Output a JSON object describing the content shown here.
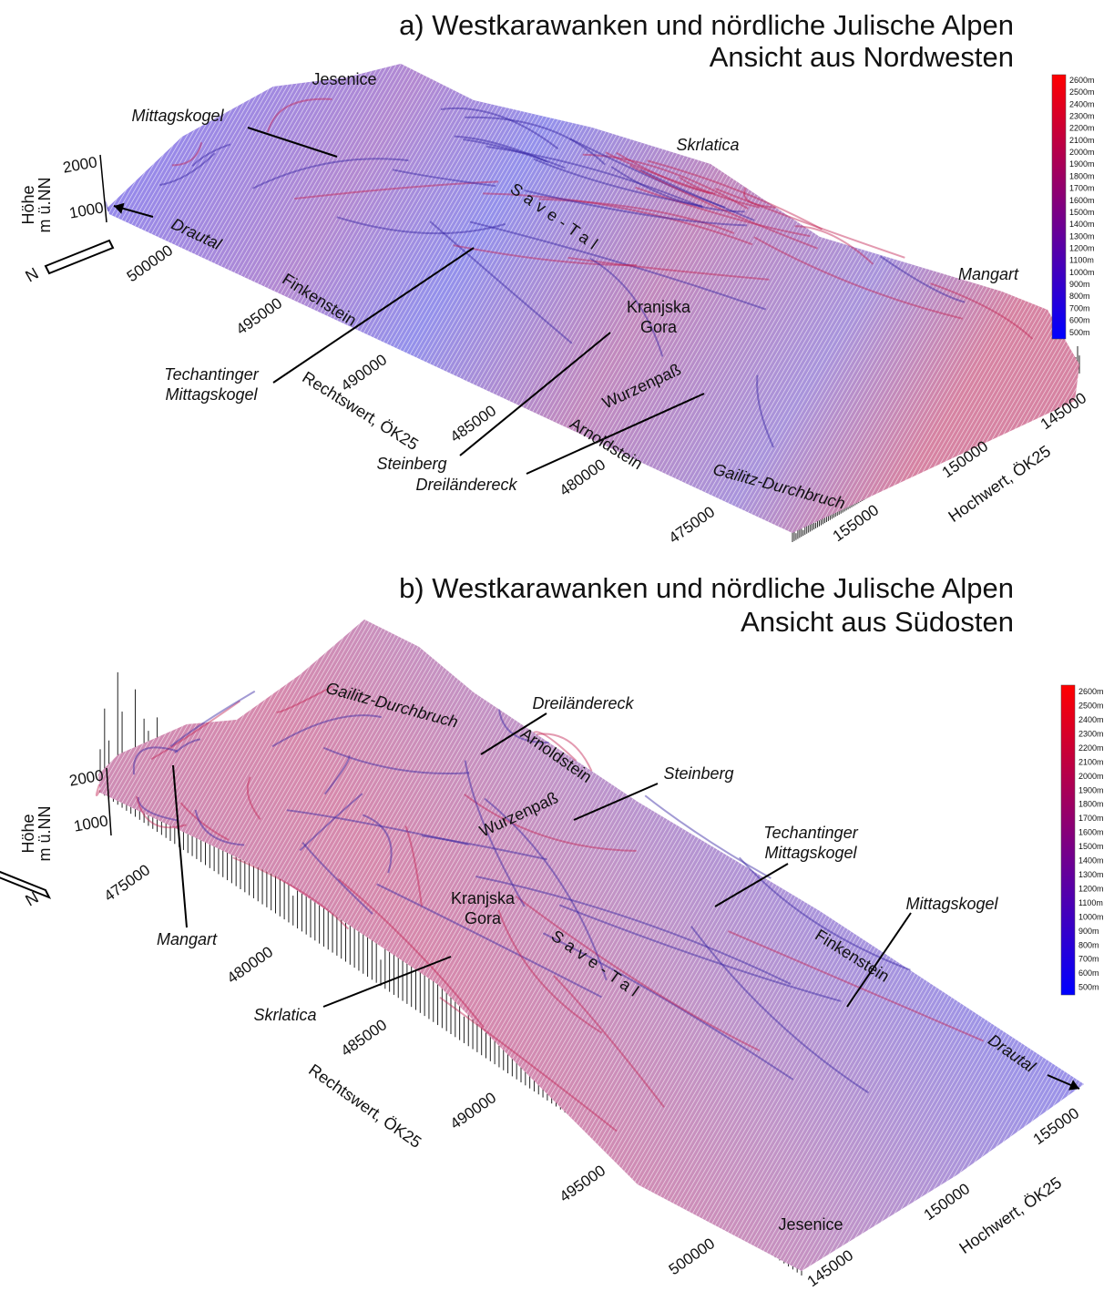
{
  "panels": [
    {
      "title": [
        "a) Westkarawanken und nördliche Julische Alpen",
        "Ansicht aus Nordwesten"
      ],
      "z_axis": {
        "label": [
          "Höhe",
          "m ü.NN"
        ],
        "ticks": [
          "2000",
          "1000"
        ]
      },
      "x_axis": {
        "label": "Rechtswert, ÖK25",
        "ticks": [
          "500000",
          "495000",
          "490000",
          "485000",
          "480000",
          "475000"
        ]
      },
      "y_axis": {
        "label": "Hochwert, ÖK25",
        "ticks": [
          "155000",
          "150000",
          "145000"
        ]
      },
      "north": "N",
      "legend": [
        "2600m",
        "2500m",
        "2400m",
        "2300m",
        "2200m",
        "2100m",
        "2000m",
        "1900m",
        "1800m",
        "1700m",
        "1600m",
        "1500m",
        "1400m",
        "1300m",
        "1200m",
        "1100m",
        "1000m",
        "900m",
        "800m",
        "700m",
        "600m",
        "500m"
      ],
      "places": [
        {
          "lines": [
            "Jesenice"
          ]
        },
        {
          "lines": [
            "Mittagskogel"
          ]
        },
        {
          "lines": [
            "Skrlatica"
          ]
        },
        {
          "lines": [
            "Mangart"
          ]
        },
        {
          "lines": [
            "Kranjska",
            "Gora"
          ]
        },
        {
          "lines": [
            "Techantinger",
            "Mittagskogel"
          ]
        },
        {
          "lines": [
            "Steinberg"
          ]
        },
        {
          "lines": [
            "Dreiländereck"
          ]
        },
        {
          "lines": [
            "Wurzenpaß"
          ]
        },
        {
          "lines": [
            "Arnoldstein"
          ]
        },
        {
          "lines": [
            "Gailitz-Durchbruch"
          ]
        },
        {
          "lines": [
            "Finkenstein"
          ]
        },
        {
          "lines": [
            "Save-Tal"
          ]
        },
        {
          "lines": [
            "Drautal"
          ]
        }
      ]
    },
    {
      "title": [
        "b) Westkarawanken und nördliche Julische Alpen",
        "Ansicht aus Südosten"
      ],
      "z_axis": {
        "label": [
          "Höhe",
          "m ü.NN"
        ],
        "ticks": [
          "2000",
          "1000"
        ]
      },
      "x_axis": {
        "label": "Rechtswert, ÖK25",
        "ticks": [
          "475000",
          "480000",
          "485000",
          "490000",
          "495000",
          "500000"
        ]
      },
      "y_axis": {
        "label": "Hochwert, ÖK25",
        "ticks": [
          "145000",
          "150000",
          "155000"
        ]
      },
      "north": "N",
      "legend": [
        "2600m",
        "2500m",
        "2400m",
        "2300m",
        "2200m",
        "2100m",
        "2000m",
        "1900m",
        "1800m",
        "1700m",
        "1600m",
        "1500m",
        "1400m",
        "1300m",
        "1200m",
        "1100m",
        "1000m",
        "900m",
        "800m",
        "700m",
        "600m",
        "500m"
      ],
      "places": [
        {
          "lines": [
            "Gailitz-Durchbruch"
          ]
        },
        {
          "lines": [
            "Dreiländereck"
          ]
        },
        {
          "lines": [
            "Arnoldstein"
          ]
        },
        {
          "lines": [
            "Steinberg"
          ]
        },
        {
          "lines": [
            "Wurzenpaß"
          ]
        },
        {
          "lines": [
            "Techantinger",
            "Mittagskogel"
          ]
        },
        {
          "lines": [
            "Kranjska",
            "Gora"
          ]
        },
        {
          "lines": [
            "Mangart"
          ]
        },
        {
          "lines": [
            "Finkenstein"
          ]
        },
        {
          "lines": [
            "Mittagskogel"
          ]
        },
        {
          "lines": [
            "Skrlatica"
          ]
        },
        {
          "lines": [
            "Save-Tal"
          ]
        },
        {
          "lines": [
            "Drautal"
          ]
        },
        {
          "lines": [
            "Jesenice"
          ]
        }
      ]
    }
  ]
}
